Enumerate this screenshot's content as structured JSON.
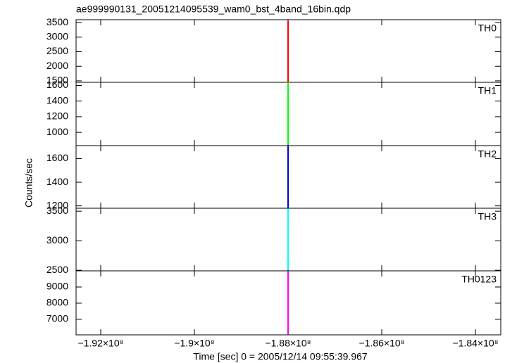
{
  "chart_data": [
    {
      "type": "line",
      "title": "ae999990131_20051214095539_wam0_bst_4band_16bin.qdp",
      "x": [
        -188000000,
        -188000000
      ],
      "series": [
        {
          "name": "TH0",
          "color": "#ff0000",
          "values": [
            1460,
            3560
          ]
        }
      ],
      "xlim": [
        -192526000,
        -183459000
      ],
      "ylim": [
        1450,
        3600
      ],
      "yticks": [
        1500,
        2000,
        2500,
        3000,
        3500
      ]
    },
    {
      "type": "line",
      "x": [
        -188000000,
        -188000000
      ],
      "series": [
        {
          "name": "TH1",
          "color": "#00ff00",
          "values": [
            850,
            1640
          ]
        }
      ],
      "xlim": [
        -192526000,
        -183459000
      ],
      "ylim": [
        830,
        1640
      ],
      "yticks": [
        1000,
        1200,
        1400,
        1600
      ]
    },
    {
      "type": "line",
      "ylabel": "Counts/sec",
      "x": [
        -188000000,
        -188000000
      ],
      "series": [
        {
          "name": "TH2",
          "color": "#0000cc",
          "values": [
            1185,
            1705
          ]
        }
      ],
      "xlim": [
        -192526000,
        -183459000
      ],
      "ylim": [
        1180,
        1710
      ],
      "yticks": [
        1200,
        1400,
        1600
      ]
    },
    {
      "type": "line",
      "x": [
        -188000000,
        -188000000
      ],
      "series": [
        {
          "name": "TH3",
          "color": "#00ffff",
          "values": [
            2500,
            3545
          ]
        }
      ],
      "xlim": [
        -192526000,
        -183459000
      ],
      "ylim": [
        2490,
        3550
      ],
      "yticks": [
        2500,
        3000,
        3500
      ]
    },
    {
      "type": "line",
      "xlabel": "Time [sec] 0 = 2005/12/14 09:55:39.967",
      "x": [
        -188000000,
        -188000000
      ],
      "series": [
        {
          "name": "TH0123",
          "color": "#ff00ff",
          "values": [
            6100,
            9950
          ]
        }
      ],
      "xlim": [
        -192526000,
        -183459000
      ],
      "ylim": [
        6040,
        10000
      ],
      "yticks": [
        7000,
        8000,
        9000
      ],
      "xticks": [
        {
          "value": -192000000,
          "label": "−1.92×10⁸"
        },
        {
          "value": -190000000,
          "label": "−1.9×10⁸"
        },
        {
          "value": -188000000,
          "label": "−1.88×10⁸"
        },
        {
          "value": -186000000,
          "label": "−1.86×10⁸"
        },
        {
          "value": -184000000,
          "label": "−1.84×10⁸"
        }
      ]
    }
  ]
}
